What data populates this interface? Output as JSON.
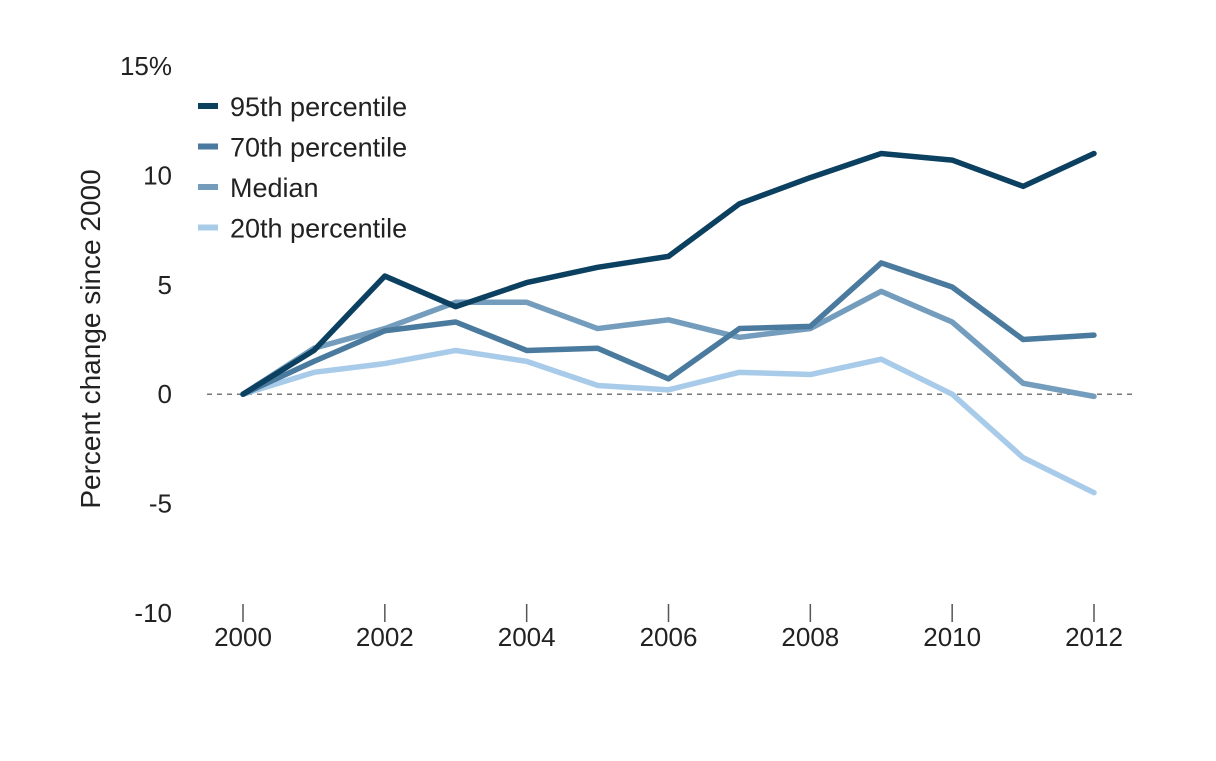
{
  "chart_data": {
    "type": "line",
    "title": "",
    "xlabel": "",
    "ylabel": "Percent change since 2000",
    "x": [
      2000,
      2001,
      2002,
      2003,
      2004,
      2005,
      2006,
      2007,
      2008,
      2009,
      2010,
      2011,
      2012
    ],
    "xticks": [
      "2000",
      "2002",
      "2004",
      "2006",
      "2008",
      "2010",
      "2012"
    ],
    "ylim": [
      -10,
      15
    ],
    "yticks": [
      "-10",
      "-5",
      "0",
      "5",
      "10",
      "15%"
    ],
    "zero_line": "dashed",
    "grid": false,
    "legend_position": "top-left",
    "series": [
      {
        "name": "95th percentile",
        "color": "#0b4060",
        "values": [
          0,
          2.0,
          5.4,
          4.0,
          5.1,
          5.8,
          6.3,
          8.7,
          9.9,
          11.0,
          10.7,
          9.5,
          11.0
        ]
      },
      {
        "name": "70th percentile",
        "color": "#4a7a9e",
        "values": [
          0,
          1.5,
          2.9,
          3.3,
          2.0,
          2.1,
          0.7,
          3.0,
          3.1,
          6.0,
          4.9,
          2.5,
          2.7
        ]
      },
      {
        "name": "Median",
        "color": "#749dbd",
        "values": [
          0,
          2.1,
          3.0,
          4.2,
          4.2,
          3.0,
          3.4,
          2.6,
          3.0,
          4.7,
          3.3,
          0.5,
          -0.1
        ]
      },
      {
        "name": "20th percentile",
        "color": "#a9cbea",
        "values": [
          0,
          1.0,
          1.4,
          2.0,
          1.5,
          0.4,
          0.2,
          1.0,
          0.9,
          1.6,
          0.0,
          -2.9,
          -4.5
        ]
      }
    ]
  }
}
